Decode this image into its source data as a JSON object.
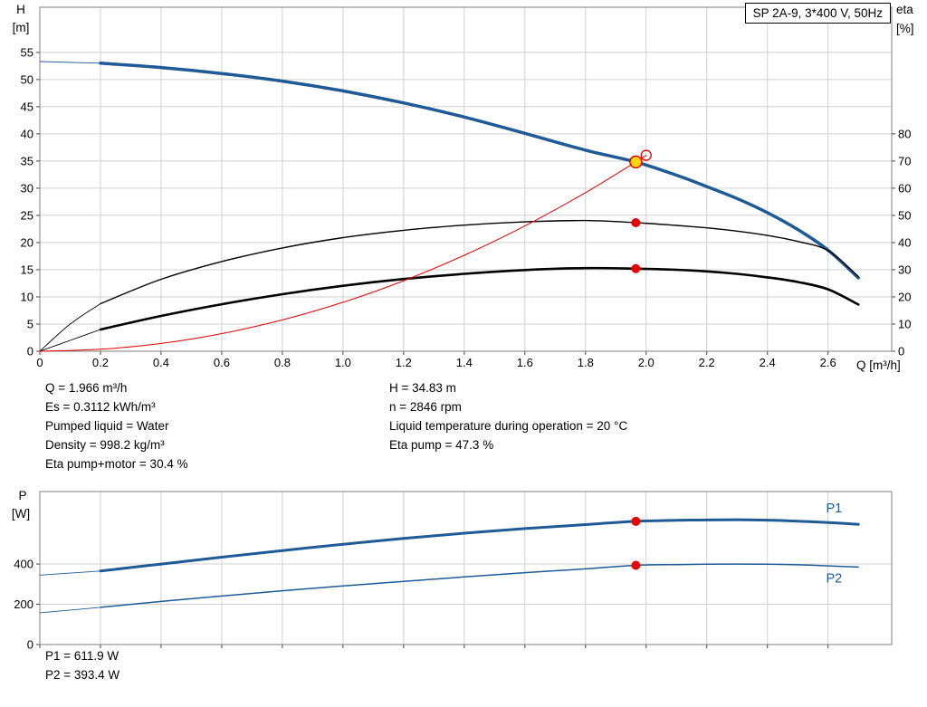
{
  "title_box": "SP 2A-9, 3*400 V, 50Hz",
  "colors": {
    "curve_blue": "#1e5a96",
    "marker_red": "#e60000",
    "duty_yellow": "#ffd700",
    "grid": "#d0d0d0",
    "frame": "#7f7f7f",
    "tick": "#404040"
  },
  "info_block": {
    "left": [
      "Q = 1.966 m³/h",
      "Es = 0.3112 kWh/m³",
      "Pumped liquid = Water",
      "Density = 998.2 kg/m³",
      "Eta pump+motor = 30.4 %"
    ],
    "right": [
      "H = 34.83 m",
      "n = 2846 rpm",
      "Liquid temperature during operation = 20 °C",
      "Eta pump = 47.3 %"
    ]
  },
  "power_block": [
    "P1 = 611.9 W",
    "P2 = 393.4 W"
  ],
  "chart_data": [
    {
      "type": "line",
      "name": "hq-eta-chart",
      "title": "SP 2A-9, 3*400 V, 50Hz",
      "x_axis": {
        "label": "Q [m³/h]",
        "min": 0,
        "max": 2.81,
        "tick_values": [
          0,
          0.2,
          0.4,
          0.6,
          0.8,
          1.0,
          1.2,
          1.4,
          1.6,
          1.8,
          2.0,
          2.2,
          2.4,
          2.6
        ],
        "tick_labels": [
          "0",
          "0.2",
          "0.4",
          "0.6",
          "0.8",
          "1.0",
          "1.2",
          "1.4",
          "1.6",
          "1.8",
          "2.0",
          "2.2",
          "2.4",
          "2.6"
        ]
      },
      "y_axis_left": {
        "label": "H [m]",
        "label_lines": [
          "H",
          "[m]"
        ],
        "min": 0,
        "max": 63.3,
        "tick_values": [
          0,
          5,
          10,
          15,
          20,
          25,
          30,
          35,
          40,
          45,
          50,
          55
        ],
        "tick_labels": [
          "0",
          "5",
          "10",
          "15",
          "20",
          "25",
          "30",
          "35",
          "40",
          "45",
          "50",
          "55"
        ]
      },
      "y_axis_right": {
        "label": "eta [%]",
        "label_lines": [
          "eta",
          "[%]"
        ],
        "min": 0,
        "max": 126.6,
        "tick_values": [
          0,
          10,
          20,
          30,
          40,
          50,
          60,
          70,
          80
        ],
        "tick_labels": [
          "0",
          "10",
          "20",
          "30",
          "40",
          "50",
          "60",
          "70",
          "80"
        ]
      },
      "series": [
        {
          "id": "hq-curve",
          "name": "Pump curve H-Q",
          "axis": "left",
          "color": "#1e5a96",
          "width": 3.5,
          "thin_lead": [
            [
              0,
              53.3
            ],
            [
              0.2,
              53.0
            ]
          ],
          "points": [
            [
              0.2,
              53.0
            ],
            [
              0.4,
              52.2
            ],
            [
              0.6,
              51.1
            ],
            [
              0.8,
              49.7
            ],
            [
              1.0,
              47.9
            ],
            [
              1.2,
              45.7
            ],
            [
              1.4,
              43.1
            ],
            [
              1.6,
              40.1
            ],
            [
              1.8,
              37.0
            ],
            [
              1.966,
              34.83
            ],
            [
              2.1,
              32.4
            ],
            [
              2.2,
              30.3
            ],
            [
              2.3,
              28.1
            ],
            [
              2.4,
              25.5
            ],
            [
              2.5,
              22.4
            ],
            [
              2.6,
              18.6
            ],
            [
              2.7,
              13.5
            ]
          ]
        },
        {
          "id": "eta-pump-curve",
          "name": "Eta pump",
          "axis": "right",
          "color": "#000000",
          "width": 1.4,
          "thin_lead": [
            [
              0,
              0
            ],
            [
              0.1,
              10
            ],
            [
              0.2,
              17.5
            ]
          ],
          "points": [
            [
              0.2,
              17.5
            ],
            [
              0.4,
              26.5
            ],
            [
              0.6,
              33.0
            ],
            [
              0.8,
              38.0
            ],
            [
              1.0,
              41.8
            ],
            [
              1.2,
              44.5
            ],
            [
              1.4,
              46.4
            ],
            [
              1.6,
              47.6
            ],
            [
              1.8,
              48.1
            ],
            [
              1.966,
              47.3
            ],
            [
              2.1,
              46.3
            ],
            [
              2.2,
              45.4
            ],
            [
              2.3,
              44.2
            ],
            [
              2.4,
              42.6
            ],
            [
              2.5,
              40.4
            ],
            [
              2.6,
              37.0
            ],
            [
              2.7,
              27.5
            ]
          ]
        },
        {
          "id": "eta-pump-motor-curve",
          "name": "Eta pump+motor",
          "axis": "right",
          "color": "#000000",
          "width": 2.6,
          "thin_lead": [
            [
              0,
              0
            ],
            [
              0.1,
              4
            ],
            [
              0.2,
              8
            ]
          ],
          "points": [
            [
              0.2,
              8.0
            ],
            [
              0.4,
              13.0
            ],
            [
              0.6,
              17.3
            ],
            [
              0.8,
              21.0
            ],
            [
              1.0,
              24.1
            ],
            [
              1.2,
              26.6
            ],
            [
              1.4,
              28.5
            ],
            [
              1.6,
              29.9
            ],
            [
              1.8,
              30.6
            ],
            [
              1.966,
              30.4
            ],
            [
              2.1,
              30.0
            ],
            [
              2.2,
              29.4
            ],
            [
              2.3,
              28.5
            ],
            [
              2.4,
              27.2
            ],
            [
              2.5,
              25.5
            ],
            [
              2.6,
              22.8
            ],
            [
              2.7,
              17.2
            ]
          ]
        },
        {
          "id": "system-curve",
          "name": "System curve",
          "axis": "left",
          "color": "#e60000",
          "width": 1,
          "points": [
            [
              0,
              0
            ],
            [
              0.2,
              0.36
            ],
            [
              0.4,
              1.44
            ],
            [
              0.6,
              3.24
            ],
            [
              0.8,
              5.77
            ],
            [
              1.0,
              9.01
            ],
            [
              1.2,
              12.97
            ],
            [
              1.4,
              17.66
            ],
            [
              1.6,
              23.06
            ],
            [
              1.8,
              29.19
            ],
            [
              1.966,
              34.83
            ],
            [
              2.0,
              36.05
            ]
          ]
        }
      ],
      "markers": [
        {
          "id": "eta-pump-point",
          "axis": "right",
          "x": 1.966,
          "y": 47.3,
          "style": "dot",
          "color": "#e60000",
          "r": 5
        },
        {
          "id": "eta-pump-motor-point",
          "axis": "right",
          "x": 1.966,
          "y": 30.4,
          "style": "dot",
          "color": "#e60000",
          "r": 5
        },
        {
          "id": "requested-duty-point",
          "axis": "left",
          "x": 2.0,
          "y": 36.05,
          "style": "open",
          "color": "#e60000",
          "r": 5.5
        },
        {
          "id": "duty-point",
          "axis": "left",
          "x": 1.966,
          "y": 34.83,
          "style": "duty",
          "color": "#e60000",
          "fill": "#ffd700",
          "r": 6.5,
          "interactable": true
        }
      ]
    },
    {
      "type": "line",
      "name": "power-chart",
      "x_axis": {
        "label": "",
        "min": 0,
        "max": 2.81,
        "tick_values": [
          0,
          0.2,
          0.4,
          0.6,
          0.8,
          1.0,
          1.2,
          1.4,
          1.6,
          1.8,
          2.0,
          2.2,
          2.4,
          2.6
        ],
        "tick_labels": []
      },
      "y_axis_left": {
        "label": "P [W]",
        "label_lines": [
          "P",
          "[W]"
        ],
        "min": 0,
        "max": 760,
        "tick_values": [
          0,
          200,
          400
        ],
        "tick_labels": [
          "0",
          "200",
          "400"
        ]
      },
      "series": [
        {
          "id": "p1-curve",
          "name": "P1",
          "axis": "left",
          "color": "#1e5a96",
          "width": 3,
          "thin_lead": [
            [
              0,
              345
            ],
            [
              0.2,
              365
            ]
          ],
          "points": [
            [
              0.2,
              365
            ],
            [
              0.4,
              400
            ],
            [
              0.6,
              434
            ],
            [
              0.8,
              467
            ],
            [
              1.0,
              498
            ],
            [
              1.2,
              527
            ],
            [
              1.4,
              553
            ],
            [
              1.6,
              576
            ],
            [
              1.8,
              596
            ],
            [
              1.966,
              611.9
            ],
            [
              2.1,
              617
            ],
            [
              2.2,
              619
            ],
            [
              2.3,
              620
            ],
            [
              2.4,
              618
            ],
            [
              2.5,
              613
            ],
            [
              2.6,
              606
            ],
            [
              2.7,
              597
            ]
          ]
        },
        {
          "id": "p2-curve",
          "name": "P2",
          "axis": "left",
          "color": "#1e5a96",
          "width": 1.5,
          "thin_lead": [
            [
              0,
              158
            ],
            [
              0.2,
              185
            ]
          ],
          "points": [
            [
              0.2,
              185
            ],
            [
              0.4,
              214
            ],
            [
              0.6,
              241
            ],
            [
              0.8,
              267
            ],
            [
              1.0,
              291
            ],
            [
              1.2,
              314
            ],
            [
              1.4,
              336
            ],
            [
              1.6,
              357
            ],
            [
              1.8,
              376
            ],
            [
              1.966,
              393.4
            ],
            [
              2.1,
              397
            ],
            [
              2.2,
              399
            ],
            [
              2.3,
              400
            ],
            [
              2.4,
              399
            ],
            [
              2.5,
              396
            ],
            [
              2.6,
              391
            ],
            [
              2.7,
              385
            ]
          ]
        }
      ],
      "annotations": [
        {
          "id": "p1-curve-label",
          "text": "P1",
          "x": 2.62,
          "y": 680,
          "color": "#1e5a96"
        },
        {
          "id": "p2-curve-label",
          "text": "P2",
          "x": 2.62,
          "y": 330,
          "color": "#1e5a96"
        }
      ],
      "markers": [
        {
          "id": "p1-point",
          "axis": "left",
          "x": 1.966,
          "y": 611.9,
          "style": "dot",
          "color": "#e60000",
          "r": 5
        },
        {
          "id": "p2-point",
          "axis": "left",
          "x": 1.966,
          "y": 393.4,
          "style": "dot",
          "color": "#e60000",
          "r": 5
        }
      ]
    }
  ]
}
